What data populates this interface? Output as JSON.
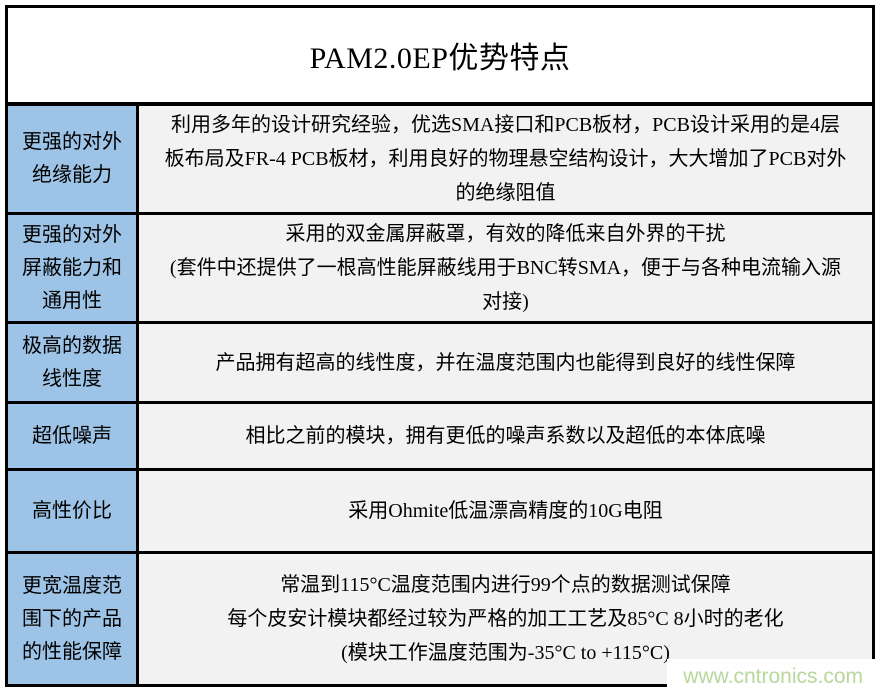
{
  "title": "PAM2.0EP优势特点",
  "watermark": "www.cntronics.com",
  "colors": {
    "header_bg": "#9DC3E6",
    "content_bg": "#F2F2F2",
    "border": "#000000",
    "watermark_text": "#B7D79C"
  },
  "table": {
    "rows": [
      {
        "header": "更强的对外\n绝缘能力",
        "content": "利用多年的设计研究经验，优选SMA接口和PCB板材，PCB设计采用的是4层\n板布局及FR-4 PCB板材，利用良好的物理悬空结构设计，大大增加了PCB对外\n的绝缘阻值"
      },
      {
        "header": "更强的对外\n屏蔽能力和\n通用性",
        "content": "采用的双金属屏蔽罩，有效的降低来自外界的干扰\n(套件中还提供了一根高性能屏蔽线用于BNC转SMA，便于与各种电流输入源\n对接)"
      },
      {
        "header": "极高的数据\n线性度",
        "content": "产品拥有超高的线性度，并在温度范围内也能得到良好的线性保障"
      },
      {
        "header": "超低噪声",
        "content": "相比之前的模块，拥有更低的噪声系数以及超低的本体底噪"
      },
      {
        "header": "高性价比",
        "content": "采用Ohmite低温漂高精度的10G电阻"
      },
      {
        "header": "更宽温度范\n围下的产品\n的性能保障",
        "content": "常温到115°C温度范围内进行99个点的数据测试保障\n每个皮安计模块都经过较为严格的加工工艺及85°C 8小时的老化\n(模块工作温度范围为-35°C to +115°C)"
      }
    ]
  }
}
